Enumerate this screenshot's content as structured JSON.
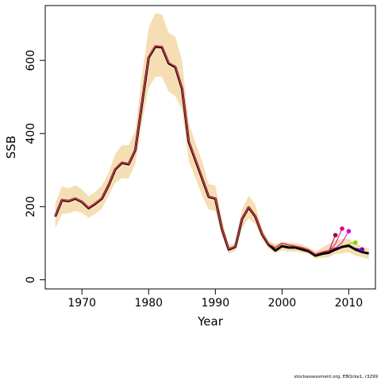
{
  "chart_data": {
    "type": "line",
    "xlabel": "Year",
    "ylabel": "SSB",
    "xlim": [
      1964.5,
      2014
    ],
    "ylim": [
      -25,
      750
    ],
    "x_ticks": [
      1970,
      1980,
      1990,
      2000,
      2010
    ],
    "y_ticks": [
      0,
      200,
      400,
      600
    ],
    "band": {
      "color": "#f5deb3",
      "x": [
        1966,
        1967,
        1968,
        1969,
        1970,
        1971,
        1972,
        1973,
        1974,
        1975,
        1976,
        1977,
        1978,
        1979,
        1980,
        1981,
        1982,
        1983,
        1984,
        1985,
        1986,
        1987,
        1988,
        1989,
        1990,
        1991,
        1992,
        1993,
        1994,
        1995,
        1996,
        1997,
        1998,
        1999,
        2000,
        2001,
        2002,
        2003,
        2004,
        2005,
        2006,
        2007,
        2008,
        2009,
        2010,
        2011,
        2012,
        2013
      ],
      "lower": [
        140,
        180,
        182,
        188,
        183,
        170,
        180,
        195,
        230,
        265,
        278,
        277,
        318,
        430,
        525,
        555,
        555,
        515,
        502,
        465,
        325,
        280,
        230,
        192,
        188,
        120,
        72,
        78,
        140,
        168,
        152,
        110,
        85,
        72,
        80,
        78,
        77,
        74,
        70,
        58,
        60,
        62,
        70,
        72,
        75,
        66,
        62,
        57
      ],
      "upper": [
        210,
        255,
        250,
        258,
        248,
        228,
        240,
        258,
        292,
        345,
        368,
        368,
        408,
        560,
        690,
        730,
        725,
        675,
        665,
        600,
        430,
        375,
        325,
        262,
        258,
        165,
        95,
        100,
        192,
        230,
        205,
        140,
        105,
        98,
        102,
        102,
        100,
        96,
        88,
        78,
        88,
        98,
        108,
        112,
        112,
        100,
        90,
        85
      ]
    },
    "series": [
      {
        "color": "#000000",
        "x": [
          1966,
          1967,
          1968,
          1969,
          1970,
          1971,
          1972,
          1973,
          1974,
          1975,
          1976,
          1977,
          1978,
          1979,
          1980,
          1981,
          1982,
          1983,
          1984,
          1985,
          1986,
          1987,
          1988,
          1989,
          1990,
          1991,
          1992,
          1993,
          1994,
          1995,
          1996,
          1997,
          1998,
          1999,
          2000,
          2001,
          2002,
          2003,
          2004,
          2005,
          2006,
          2007,
          2008,
          2009,
          2010,
          2011,
          2012,
          2013
        ],
        "values": [
          173,
          218,
          215,
          222,
          213,
          196,
          208,
          222,
          258,
          302,
          320,
          316,
          355,
          482,
          608,
          638,
          636,
          592,
          582,
          523,
          378,
          328,
          278,
          227,
          222,
          138,
          83,
          90,
          166,
          198,
          173,
          125,
          96,
          80,
          92,
          88,
          88,
          83,
          78,
          66,
          71,
          74,
          83,
          90,
          93,
          83,
          76,
          72
        ]
      },
      {
        "color": "#d8344f",
        "x": [
          1966,
          1967,
          1968,
          1969,
          1970,
          1971,
          1972,
          1973,
          1974,
          1975,
          1976,
          1977,
          1978,
          1979,
          1980,
          1981,
          1982,
          1983,
          1984,
          1985,
          1986,
          1987,
          1988,
          1989,
          1990,
          1991,
          1992,
          1993,
          1994,
          1995,
          1996,
          1997,
          1998,
          1999,
          2000,
          2001,
          2002,
          2003,
          2004,
          2005,
          2006,
          2007,
          2008
        ],
        "values": [
          174,
          219,
          216,
          223,
          214,
          197,
          209,
          223,
          259,
          303,
          321,
          317,
          356,
          484,
          610,
          640,
          638,
          594,
          584,
          525,
          380,
          330,
          280,
          228,
          223,
          139,
          84,
          91,
          167,
          199,
          174,
          126,
          98,
          88,
          100,
          95,
          92,
          88,
          82,
          70,
          76,
          80,
          88
        ]
      },
      {
        "color": "#9b0052",
        "endpoint": true,
        "x": [
          2005,
          2006,
          2007,
          2008
        ],
        "values": [
          68,
          74,
          78,
          122
        ]
      },
      {
        "color": "#e8007a",
        "endpoint": true,
        "x": [
          2005,
          2006,
          2007,
          2008,
          2009
        ],
        "values": [
          68,
          74,
          79,
          98,
          140
        ]
      },
      {
        "color": "#d400d4",
        "endpoint": true,
        "x": [
          2006,
          2007,
          2008,
          2009,
          2010
        ],
        "values": [
          73,
          78,
          86,
          102,
          133
        ]
      },
      {
        "color": "#7fd400",
        "endpoint": true,
        "x": [
          2007,
          2008,
          2009,
          2010,
          2011
        ],
        "values": [
          76,
          82,
          92,
          98,
          102
        ]
      },
      {
        "color": "#7a00b8",
        "endpoint": true,
        "x": [
          2008,
          2009,
          2010,
          2011,
          2012
        ],
        "values": [
          80,
          88,
          92,
          86,
          83
        ]
      }
    ]
  },
  "footnote": "stockassessment.org, EBQcke1, r3299"
}
